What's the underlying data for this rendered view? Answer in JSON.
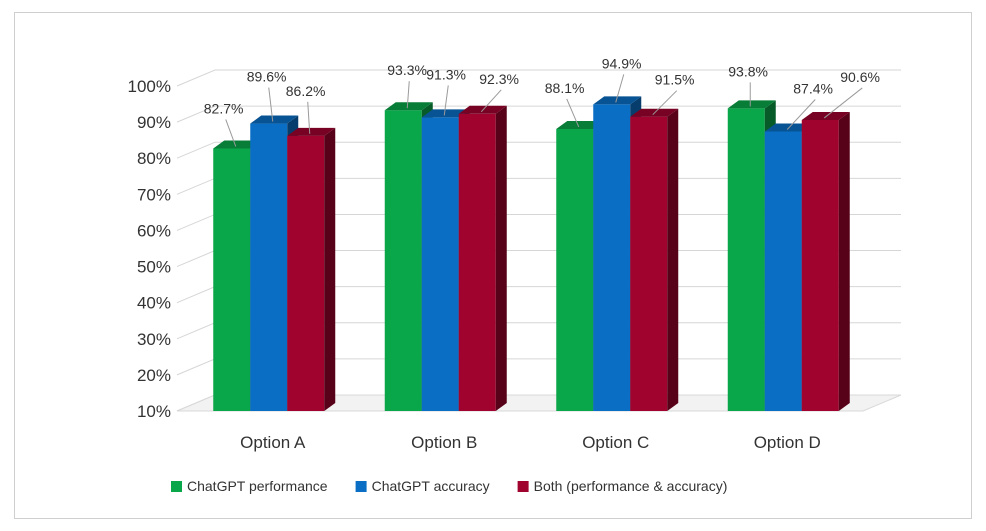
{
  "chart_data": {
    "type": "bar",
    "style": "3d-clustered-column",
    "categories": [
      "Option A",
      "Option B",
      "Option C",
      "Option D"
    ],
    "series": [
      {
        "name": "ChatGPT performance",
        "color": "#0aa64a",
        "values": [
          82.7,
          93.3,
          88.1,
          93.8
        ],
        "labels": [
          "82.7%",
          "93.3%",
          "88.1%",
          "93.8%"
        ]
      },
      {
        "name": "ChatGPT accuracy",
        "color": "#0a6fc4",
        "values": [
          89.6,
          91.3,
          94.9,
          87.4
        ],
        "labels": [
          "89.6%",
          "91.3%",
          "94.9%",
          "87.4%"
        ]
      },
      {
        "name": "Both (performance & accuracy)",
        "color": "#a0032e",
        "values": [
          86.2,
          92.3,
          91.5,
          90.6
        ],
        "labels": [
          "86.2%",
          "92.3%",
          "91.5%",
          "90.6%"
        ]
      }
    ],
    "y_ticks": [
      "10%",
      "20%",
      "30%",
      "40%",
      "50%",
      "60%",
      "70%",
      "80%",
      "90%",
      "100%"
    ],
    "ylim": [
      10,
      100
    ],
    "title": "",
    "xlabel": "",
    "ylabel": "",
    "grid": true,
    "legend_position": "bottom"
  }
}
